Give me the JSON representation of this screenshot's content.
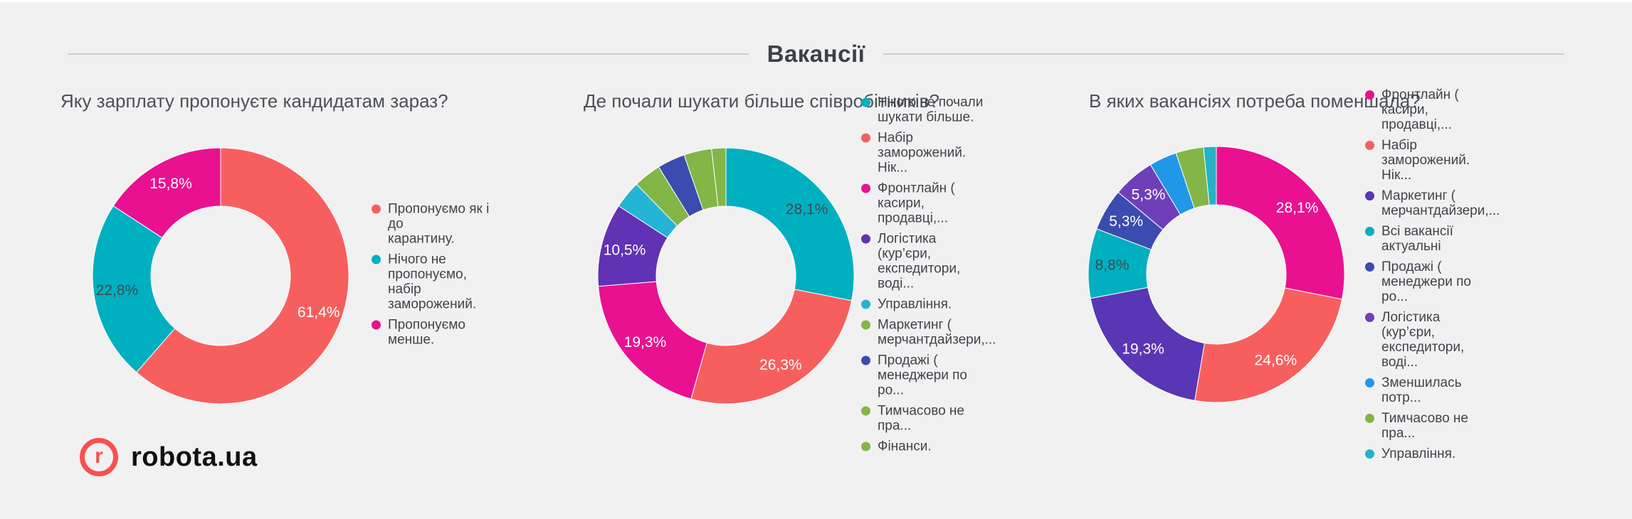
{
  "page": {
    "background": "#f2f1f2"
  },
  "header": {
    "title": "Вакансії"
  },
  "logo": {
    "brand": "robota.ua",
    "icon_letter": "r",
    "brand_color": "#f8504e"
  },
  "chart_data": [
    {
      "type": "pie",
      "subtype": "donut",
      "title": "Яку зарплату пропонуєте кандидатам зараз?",
      "unit": "%",
      "legend_position": "right",
      "slices": [
        {
          "label": "Пропонуємо як і до карантину.",
          "wrap": [
            "Пропонуємо як і до",
            "карантину."
          ],
          "value": 61.4,
          "display": "61,4%",
          "color": "#f75f5f",
          "label_color": "#ffffff",
          "show_label": true
        },
        {
          "label": "Нічого не пропонуємо, набір заморожений.",
          "wrap": [
            "Нічого не",
            "пропонуємо, набір",
            "заморожений."
          ],
          "value": 22.8,
          "display": "22,8%",
          "color": "#00b0c0",
          "label_color": "#3e4a52",
          "show_label": true
        },
        {
          "label": "Пропонуємо менше.",
          "wrap": [
            "Пропонуємо",
            "менше."
          ],
          "value": 15.8,
          "display": "15,8%",
          "color": "#e91190",
          "label_color": "#ffffff",
          "show_label": true
        }
      ]
    },
    {
      "type": "pie",
      "subtype": "donut",
      "title": "Де почали шукати більше співробітників?",
      "unit": "%",
      "legend_position": "right",
      "slices": [
        {
          "label": "Нікого не почали шукати більше.",
          "wrap": [
            "Нікого не почали",
            "шукати більше."
          ],
          "value": 28.1,
          "display": "28,1%",
          "color": "#00b0c0",
          "label_color": "#3e4a52",
          "show_label": true
        },
        {
          "label": "Набір заморожений. Нік...",
          "wrap": [
            "Набір",
            "заморожений. Нік..."
          ],
          "value": 26.3,
          "display": "26,3%",
          "color": "#f75f5f",
          "label_color": "#ffffff",
          "show_label": true
        },
        {
          "label": "Фронтлайн ( касири, продавці,...",
          "wrap": [
            "Фронтлайн (",
            "касири, продавці,..."
          ],
          "value": 19.3,
          "display": "19,3%",
          "color": "#e91190",
          "label_color": "#ffffff",
          "show_label": true
        },
        {
          "label": "Логістика (кур’єри, експедитори, воді...",
          "wrap": [
            "Логістика (кур’єри,",
            "експедитори, воді..."
          ],
          "value": 10.5,
          "display": "10,5%",
          "color": "#6132b4",
          "label_color": "#ffffff",
          "show_label": true
        },
        {
          "label": "Управління.",
          "wrap": [
            "Управління."
          ],
          "value": 3.5,
          "display": "3,5%",
          "color": "#24b4d6",
          "show_label": false
        },
        {
          "label": "Маркетинг ( мерчантдайзери,...",
          "wrap": [
            "Маркетинг (",
            "мерчантдайзери,..."
          ],
          "value": 3.5,
          "display": "3,5%",
          "color": "#83b547",
          "show_label": false
        },
        {
          "label": "Продажі ( менеджери по ро...",
          "wrap": [
            "Продажі (",
            "менеджери по ро..."
          ],
          "value": 3.5,
          "display": "3,5%",
          "color": "#3b4bb0",
          "show_label": false
        },
        {
          "label": "Тимчасово не пра...",
          "wrap": [
            "Тимчасово не пра..."
          ],
          "value": 3.5,
          "display": "3,5%",
          "color": "#83b547",
          "show_label": false
        },
        {
          "label": "Фінанси.",
          "wrap": [
            "Фінанси."
          ],
          "value": 1.8,
          "display": "1,8%",
          "color": "#83b547",
          "show_label": false
        }
      ]
    },
    {
      "type": "pie",
      "subtype": "donut",
      "title": "В яких вакансіях потреба поменшала?",
      "unit": "%",
      "legend_position": "right",
      "slices": [
        {
          "label": "Фронтлайн ( касири, продавці,...",
          "wrap": [
            "Фронтлайн (",
            "касири, продавці,..."
          ],
          "value": 28.1,
          "display": "28,1%",
          "color": "#e91190",
          "label_color": "#ffffff",
          "show_label": true
        },
        {
          "label": "Набір заморожений. Нік...",
          "wrap": [
            "Набір",
            "заморожений. Нік..."
          ],
          "value": 24.6,
          "display": "24,6%",
          "color": "#f75f5f",
          "label_color": "#ffffff",
          "show_label": true
        },
        {
          "label": "Маркетинг ( мерчантдайзери,...",
          "wrap": [
            "Маркетинг (",
            "мерчантдайзери,..."
          ],
          "value": 19.3,
          "display": "19,3%",
          "color": "#5936b4",
          "label_color": "#ffffff",
          "show_label": true
        },
        {
          "label": "Всі вакансії актуальні",
          "wrap": [
            "Всі вакансії",
            "актуальні"
          ],
          "value": 8.8,
          "display": "8,8%",
          "color": "#00b0c0",
          "label_color": "#3e4a52",
          "show_label": true
        },
        {
          "label": "Продажі ( менеджери по ро...",
          "wrap": [
            "Продажі (",
            "менеджери по ро..."
          ],
          "value": 5.3,
          "display": "5,3%",
          "color": "#3b4bb0",
          "label_color": "#ffffff",
          "show_label": true
        },
        {
          "label": "Логістика (кур’єри, експедитори, воді...",
          "wrap": [
            "Логістика (кур’єри,",
            "експедитори, воді..."
          ],
          "value": 5.3,
          "display": "5,3%",
          "color": "#6f3fba",
          "label_color": "#ffffff",
          "show_label": true
        },
        {
          "label": "Зменшилась потр...",
          "wrap": [
            "Зменшилась потр..."
          ],
          "value": 3.5,
          "display": "3,5%",
          "color": "#2197e8",
          "show_label": false
        },
        {
          "label": "Тимчасово не пра...",
          "wrap": [
            "Тимчасово не пра..."
          ],
          "value": 3.5,
          "display": "3,5%",
          "color": "#83b547",
          "show_label": false
        },
        {
          "label": "Управління.",
          "wrap": [
            "Управління."
          ],
          "value": 1.6,
          "display": "1,6%",
          "color": "#22b3c6",
          "show_label": false
        }
      ]
    }
  ]
}
